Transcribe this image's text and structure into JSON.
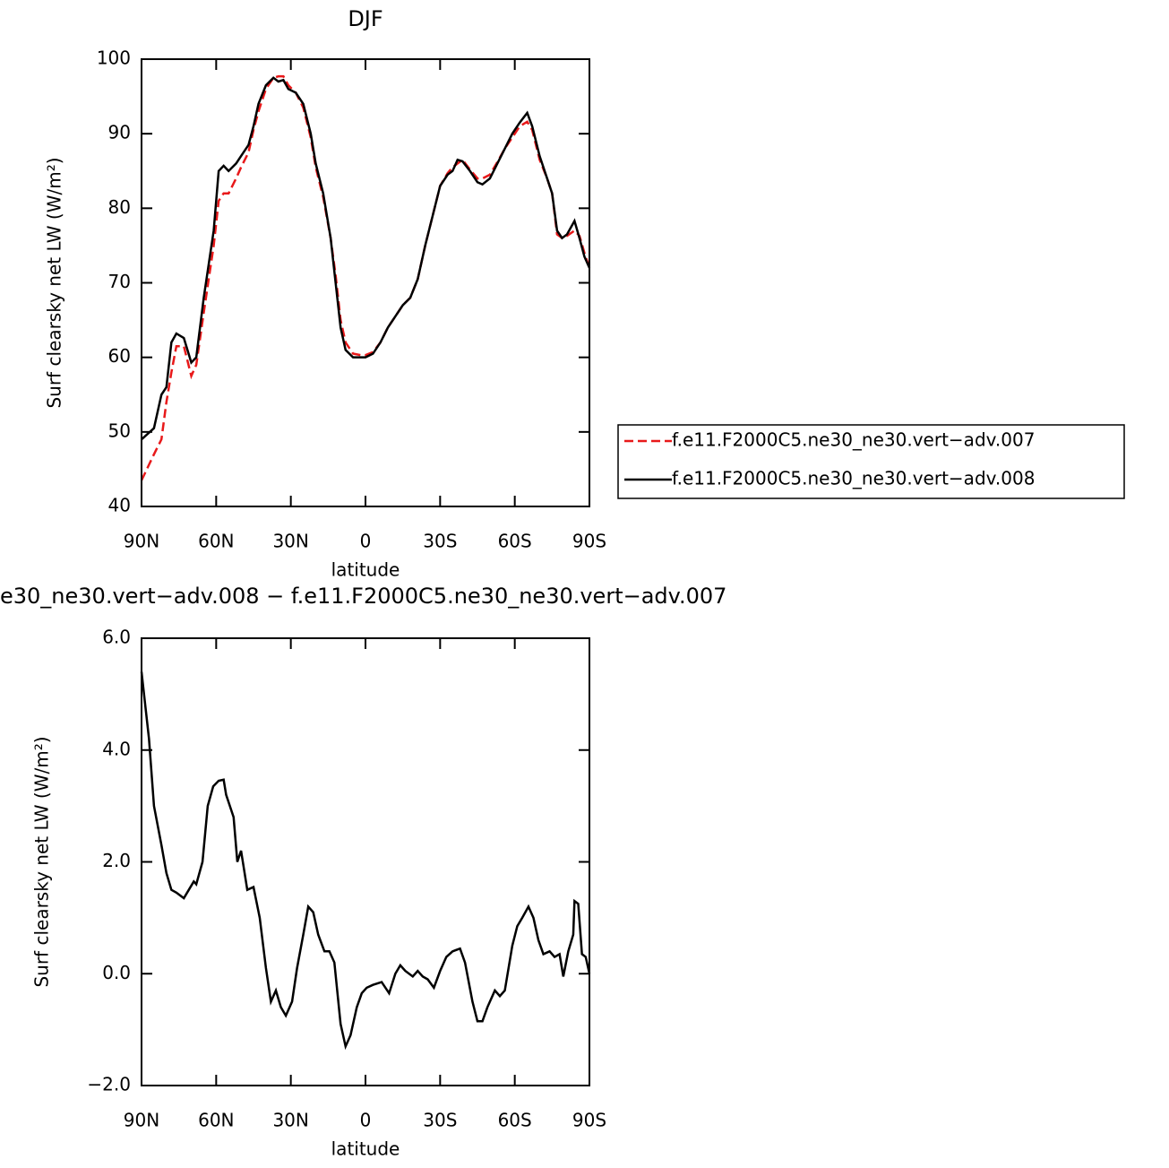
{
  "chart_data": [
    {
      "type": "line",
      "title": "DJF",
      "xlabel": "latitude",
      "ylabel": "Surf clearsky net LW (W/m²)",
      "x": [
        90,
        85,
        82,
        80,
        78,
        76,
        73,
        70,
        68,
        65,
        61,
        59,
        57,
        55,
        52,
        50,
        47,
        45,
        43,
        40,
        37,
        35,
        33,
        31,
        28,
        25,
        22,
        20,
        17,
        14,
        12,
        10,
        8,
        5,
        2,
        0,
        -3,
        -6,
        -9,
        -12,
        -15,
        -18,
        -21,
        -24,
        -27,
        -30,
        -33,
        -35,
        -37,
        -39,
        -42,
        -45,
        -47,
        -50,
        -53,
        -56,
        -59,
        -62,
        -65,
        -67,
        -70,
        -73,
        -75,
        -77,
        -79,
        -81,
        -84,
        -86,
        -88,
        -90
      ],
      "series": [
        {
          "name": "f.e11.F2000C5.ne30_ne30.vert−adv.007",
          "color": "#e8191a",
          "dash": true,
          "values": [
            43.5,
            47,
            49,
            54,
            58,
            61.5,
            61.5,
            57.5,
            59,
            66,
            75,
            81,
            82,
            82,
            84,
            85.5,
            87.5,
            90.5,
            93,
            96,
            97.5,
            97.7,
            97.7,
            96.5,
            95.5,
            93.5,
            89.5,
            85.5,
            81.5,
            76,
            71,
            65,
            62,
            60.5,
            60.3,
            60.3,
            60.7,
            62,
            64,
            65.5,
            67,
            68,
            70.5,
            75,
            79,
            83,
            84.7,
            85.5,
            86,
            86.5,
            85.2,
            84,
            84,
            84.5,
            86.2,
            88,
            89.5,
            91,
            91.6,
            90.5,
            86.5,
            84,
            82,
            76.5,
            76,
            76.3,
            77,
            76.3,
            74,
            72
          ]
        },
        {
          "name": "f.e11.F2000C5.ne30_ne30.vert−adv.008",
          "color": "#000000",
          "dash": false,
          "values": [
            49,
            50.5,
            55,
            56,
            62,
            63.2,
            62.6,
            59.3,
            60,
            68,
            77,
            85,
            85.7,
            85,
            86,
            87,
            88.5,
            91,
            94,
            96.5,
            97.5,
            97,
            97.2,
            96,
            95.5,
            94,
            90,
            86,
            82,
            76,
            70,
            64,
            61,
            60,
            60,
            60,
            60.5,
            62,
            64,
            65.5,
            67,
            68,
            70.5,
            75,
            79,
            83,
            84.5,
            85,
            86.5,
            86.3,
            85,
            83.5,
            83.2,
            84,
            86,
            88,
            90,
            91.5,
            92.8,
            91,
            87,
            84,
            82,
            77,
            76,
            76.5,
            78.3,
            76,
            73.5,
            72
          ]
        }
      ],
      "xlim": [
        90,
        -90
      ],
      "xticks": [
        {
          "value": 90,
          "label": "90N"
        },
        {
          "value": 60,
          "label": "60N"
        },
        {
          "value": 30,
          "label": "30N"
        },
        0,
        {
          "value": -30,
          "label": "30S"
        },
        {
          "value": -60,
          "label": "60S"
        },
        {
          "value": -90,
          "label": "90S"
        }
      ],
      "ylim": [
        40,
        100
      ],
      "yticks": [
        40,
        50,
        60,
        70,
        80,
        90,
        100
      ],
      "legend": "right"
    },
    {
      "type": "line",
      "title": "e30_ne30.vert−adv.008 − f.e11.F2000C5.ne30_ne30.vert−adv.007",
      "xlabel": "latitude",
      "ylabel": "Surf clearsky net LW (W/m²)",
      "x": [
        90,
        87,
        85,
        82,
        80,
        78,
        76,
        73,
        71,
        69,
        68,
        65.5,
        63.4,
        61.2,
        59,
        57,
        56,
        53,
        51.5,
        50,
        47.5,
        45,
        42.5,
        40,
        38,
        36,
        34,
        32,
        29.5,
        27.5,
        25,
        23,
        21,
        19,
        16.5,
        14.5,
        12.5,
        10,
        8,
        6,
        3.5,
        1.5,
        -0.5,
        -3,
        -6.5,
        -9.5,
        -12,
        -14,
        -16,
        -19,
        -21,
        -23,
        -25,
        -27.5,
        -30,
        -32.5,
        -35,
        -38,
        -40,
        -43,
        -45,
        -47,
        -49,
        -52,
        -54,
        -56,
        -59,
        -61,
        -63,
        -65.5,
        -67.5,
        -69.5,
        -71.5,
        -74,
        -76,
        -78,
        -79.5,
        -81.5,
        -83.5,
        -84,
        -85.5,
        -87,
        -88.5,
        -90
      ],
      "values": [
        5.4,
        4.2,
        3.0,
        2.3,
        1.8,
        1.5,
        1.45,
        1.35,
        1.5,
        1.65,
        1.6,
        2.0,
        3.0,
        3.35,
        3.45,
        3.47,
        3.2,
        2.8,
        2.0,
        2.2,
        1.5,
        1.55,
        1.0,
        0.1,
        -0.5,
        -0.3,
        -0.6,
        -0.75,
        -0.5,
        0.1,
        0.7,
        1.2,
        1.1,
        0.7,
        0.4,
        0.4,
        0.2,
        -0.9,
        -1.3,
        -1.1,
        -0.6,
        -0.35,
        -0.25,
        -0.2,
        -0.15,
        -0.35,
        0.0,
        0.15,
        0.05,
        -0.05,
        0.05,
        -0.05,
        -0.1,
        -0.25,
        0.05,
        0.3,
        0.4,
        0.45,
        0.2,
        -0.5,
        -0.85,
        -0.85,
        -0.6,
        -0.3,
        -0.4,
        -0.3,
        0.5,
        0.85,
        1.0,
        1.2,
        1.0,
        0.6,
        0.35,
        0.4,
        0.3,
        0.35,
        -0.05,
        0.4,
        0.7,
        1.3,
        1.25,
        0.35,
        0.3,
        0.0
      ],
      "color": "#000000",
      "xlim": [
        90,
        -90
      ],
      "xticks": [
        {
          "value": 90,
          "label": "90N"
        },
        {
          "value": 60,
          "label": "60N"
        },
        {
          "value": 30,
          "label": "30N"
        },
        0,
        {
          "value": -30,
          "label": "30S"
        },
        {
          "value": -60,
          "label": "60S"
        },
        {
          "value": -90,
          "label": "90S"
        }
      ],
      "ylim": [
        -2,
        6
      ],
      "yticks": [
        {
          "value": -2,
          "label": "−2.0"
        },
        {
          "value": 0,
          "label": "0.0"
        },
        {
          "value": 2,
          "label": "2.0"
        },
        {
          "value": 4,
          "label": "4.0"
        },
        {
          "value": 6,
          "label": "6.0"
        }
      ]
    }
  ]
}
